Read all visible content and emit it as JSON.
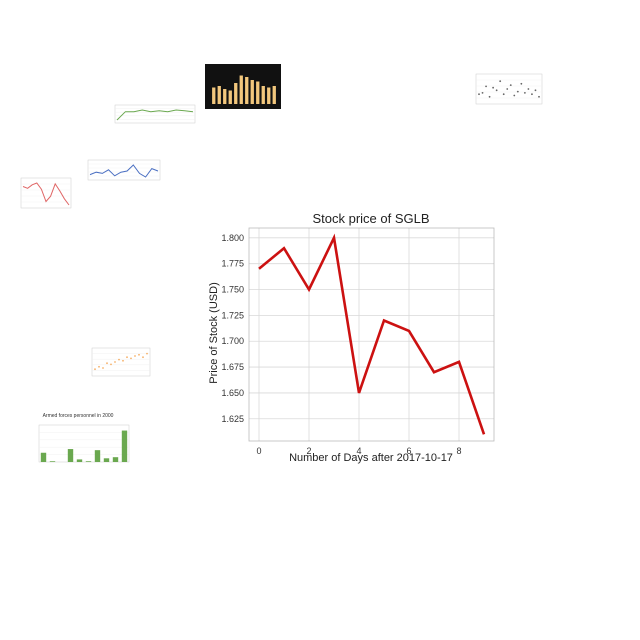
{
  "chart_data": [
    {
      "type": "line",
      "title": "Stock price of SGLB",
      "xlabel": "Number of Days after 2017-10-17",
      "ylabel": "Price of Stock (USD)",
      "x": [
        0,
        1,
        2,
        3,
        4,
        5,
        6,
        7,
        8,
        9
      ],
      "values": [
        1.77,
        1.79,
        1.75,
        1.8,
        1.65,
        1.72,
        1.71,
        1.67,
        1.68,
        1.61
      ],
      "xticks": [
        "0",
        "2",
        "4",
        "6",
        "8"
      ],
      "yticks": [
        "1.625",
        "1.650",
        "1.675",
        "1.700",
        "1.725",
        "1.750",
        "1.775",
        "1.800"
      ],
      "xlim": [
        -0.4,
        9.4
      ],
      "ylim": [
        1.6035,
        1.8095
      ],
      "grid": true,
      "color": "#cc1111"
    },
    {
      "type": "bar",
      "title": "Armed forces personnel in 2000",
      "values": [
        0.25,
        0.02,
        0.0,
        0.35,
        0.07,
        0.02,
        0.32,
        0.1,
        0.13,
        0.85
      ],
      "color": "#6aa84f"
    },
    {
      "type": "line",
      "values": [
        1.77,
        1.75,
        1.79,
        1.81,
        1.74,
        1.6,
        1.66,
        1.8,
        1.72,
        1.63,
        1.56
      ],
      "color": "#e06666"
    },
    {
      "type": "line",
      "values": [
        0.6,
        0.7,
        0.7,
        0.72,
        0.7,
        0.71,
        0.7,
        0.72,
        0.71,
        0.7
      ],
      "color": "#6aa84f"
    },
    {
      "type": "line",
      "values": [
        0.4,
        0.5,
        0.45,
        0.6,
        0.35,
        0.5,
        0.55,
        0.8,
        0.45,
        0.3,
        0.65,
        0.55
      ],
      "color": "#4a6fc2"
    },
    {
      "type": "bar",
      "values": [
        0.55,
        0.6,
        0.5,
        0.45,
        0.7,
        0.95,
        0.9,
        0.8,
        0.75,
        0.6,
        0.55,
        0.6
      ],
      "color": "#f2c77d",
      "background": "#111111"
    },
    {
      "type": "scatter",
      "values": [
        0.3,
        0.35,
        0.6,
        0.2,
        0.55,
        0.45,
        0.8,
        0.3,
        0.5,
        0.65,
        0.25,
        0.4,
        0.7,
        0.35,
        0.5,
        0.3,
        0.45,
        0.2
      ],
      "color": "#666666"
    },
    {
      "type": "scatter",
      "values": [
        0.2,
        0.3,
        0.25,
        0.45,
        0.4,
        0.5,
        0.6,
        0.55,
        0.7,
        0.65,
        0.75,
        0.8,
        0.7,
        0.85
      ],
      "color": "#f6b26b"
    }
  ]
}
